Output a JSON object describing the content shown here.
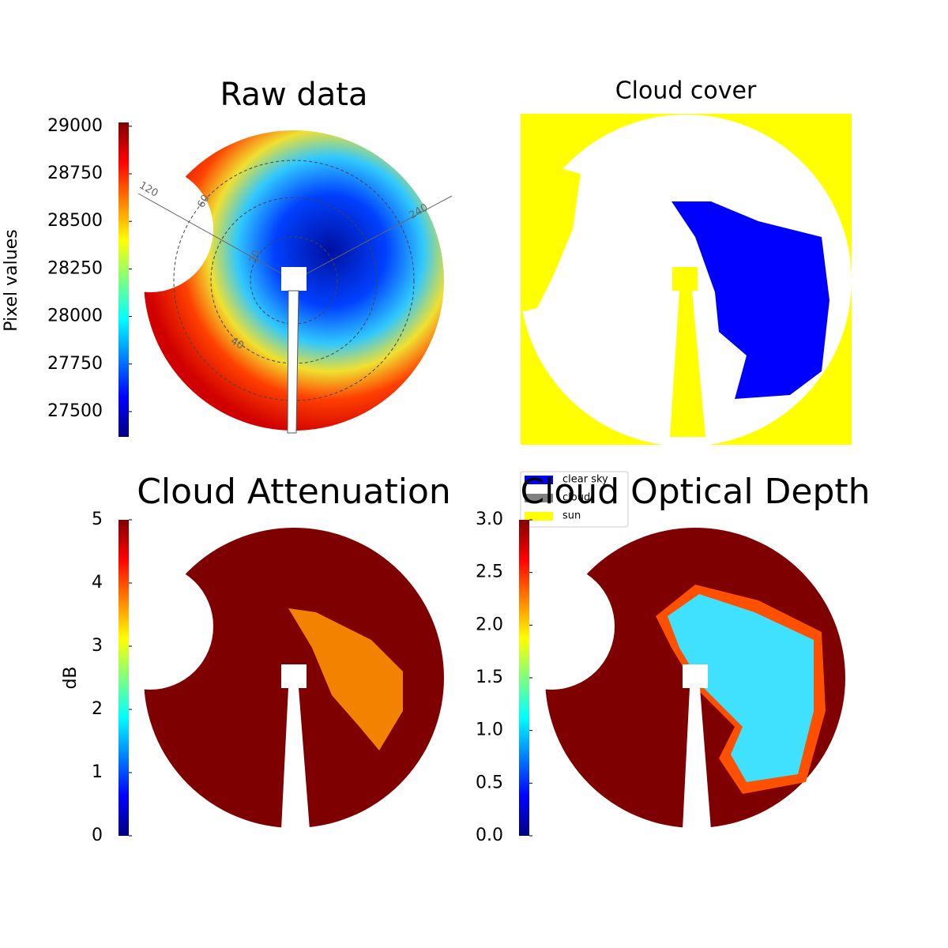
{
  "chart_data": [
    {
      "type": "image",
      "title": "Raw data",
      "colormap": "jet",
      "ylim": [
        27367,
        29020
      ],
      "yticks": [
        27500,
        27750,
        28000,
        28250,
        28500,
        28750,
        29000
      ],
      "ylabel": "Pixel values",
      "annotations": [
        "120",
        "60",
        "20",
        "40",
        "240"
      ]
    },
    {
      "type": "image",
      "title": "Cloud cover",
      "legend": [
        {
          "name": "clear sky",
          "color": "#0000ff"
        },
        {
          "name": "cloud",
          "color": "#808080"
        },
        {
          "name": "sun",
          "color": "#ffff00"
        }
      ]
    },
    {
      "type": "image",
      "title": "Cloud Attenuation",
      "colormap": "jet",
      "ylim": [
        0,
        5
      ],
      "yticks": [
        0,
        1,
        2,
        3,
        4,
        5
      ],
      "ylabel": "dB"
    },
    {
      "type": "image",
      "title": "Cloud Optical Depth",
      "colormap": "jet",
      "ylim": [
        0,
        3
      ],
      "yticks": [
        {
          "value": 0,
          "label": "0.0"
        },
        0.5,
        {
          "value": 1,
          "label": "1.0"
        },
        1.5,
        {
          "value": 2,
          "label": "2.0"
        },
        2.5,
        {
          "value": 3,
          "label": "3.0"
        }
      ]
    }
  ]
}
